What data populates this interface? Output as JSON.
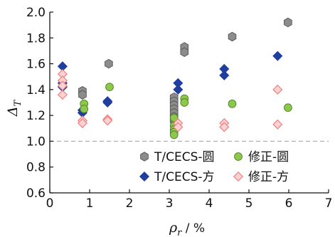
{
  "chart_data": {
    "type": "scatter",
    "xlabel": "ρ",
    "xlabel_sub": "r",
    "xlabel_unit": " / %",
    "ylabel": "Δ",
    "ylabel_sub": "T",
    "xlim": [
      0,
      7
    ],
    "ylim": [
      0.6,
      2.0
    ],
    "xticks": [
      "0",
      "1",
      "2",
      "3",
      "4",
      "5",
      "6",
      "7"
    ],
    "yticks": [
      "0.6",
      "0.8",
      "1.0",
      "1.2",
      "1.4",
      "1.6",
      "1.8",
      "2.0"
    ],
    "reference_line": 1.0,
    "legend_position": "bottom-right",
    "series": [
      {
        "name": "T/CECS-圆",
        "marker": "hexagon",
        "color": "#8c8c8c",
        "points": [
          [
            0.82,
            1.39
          ],
          [
            0.82,
            1.36
          ],
          [
            1.48,
            1.6
          ],
          [
            3.12,
            1.34
          ],
          [
            3.12,
            1.31
          ],
          [
            3.12,
            1.28
          ],
          [
            3.12,
            1.25
          ],
          [
            3.12,
            1.22
          ],
          [
            3.12,
            1.19
          ],
          [
            3.12,
            1.16
          ],
          [
            3.38,
            1.73
          ],
          [
            3.38,
            1.69
          ],
          [
            4.58,
            1.81
          ],
          [
            5.98,
            1.92
          ]
        ]
      },
      {
        "name": "T/CECS-方",
        "marker": "diamond",
        "color": "#1f3e9e",
        "points": [
          [
            0.32,
            1.58
          ],
          [
            0.32,
            1.45
          ],
          [
            0.32,
            1.42
          ],
          [
            0.82,
            1.24
          ],
          [
            0.82,
            1.22
          ],
          [
            1.45,
            1.31
          ],
          [
            1.45,
            1.3
          ],
          [
            3.22,
            1.45
          ],
          [
            3.22,
            1.4
          ],
          [
            4.38,
            1.56
          ],
          [
            4.38,
            1.51
          ],
          [
            5.72,
            1.66
          ]
        ]
      },
      {
        "name": "修正-圆",
        "marker": "circle",
        "color": "#8cc84b",
        "points": [
          [
            0.86,
            1.29
          ],
          [
            0.86,
            1.25
          ],
          [
            1.5,
            1.42
          ],
          [
            3.12,
            1.18
          ],
          [
            3.12,
            1.12
          ],
          [
            3.12,
            1.09
          ],
          [
            3.12,
            1.07
          ],
          [
            3.12,
            1.05
          ],
          [
            3.38,
            1.33
          ],
          [
            3.38,
            1.3
          ],
          [
            4.58,
            1.29
          ],
          [
            5.98,
            1.26
          ]
        ]
      },
      {
        "name": "修正-方",
        "marker": "diamond-open",
        "color": "#f08080",
        "points": [
          [
            0.32,
            1.52
          ],
          [
            0.32,
            1.47
          ],
          [
            0.32,
            1.43
          ],
          [
            0.32,
            1.36
          ],
          [
            0.82,
            1.16
          ],
          [
            0.82,
            1.14
          ],
          [
            1.45,
            1.17
          ],
          [
            1.45,
            1.16
          ],
          [
            3.22,
            1.14
          ],
          [
            3.22,
            1.11
          ],
          [
            4.38,
            1.14
          ],
          [
            4.38,
            1.11
          ],
          [
            5.72,
            1.4
          ],
          [
            5.72,
            1.13
          ]
        ]
      }
    ]
  }
}
